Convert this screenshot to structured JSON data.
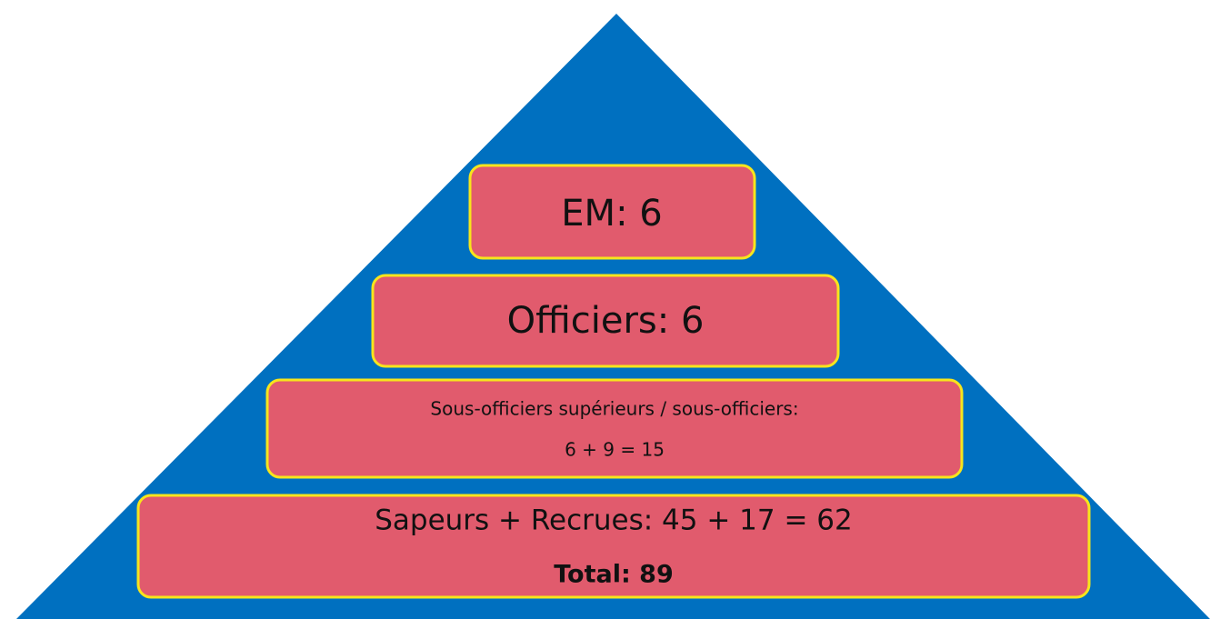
{
  "levels": [
    {
      "lines": [
        "EM: 6"
      ]
    },
    {
      "lines": [
        "Officiers: 6"
      ]
    },
    {
      "lines": [
        "Sous-officiers supérieurs / sous-officiers:",
        "6 + 9 = 15"
      ]
    },
    {
      "lines": [
        "Sapeurs + Recrues: 45 + 17 = 62",
        "Total: 89"
      ]
    }
  ]
}
